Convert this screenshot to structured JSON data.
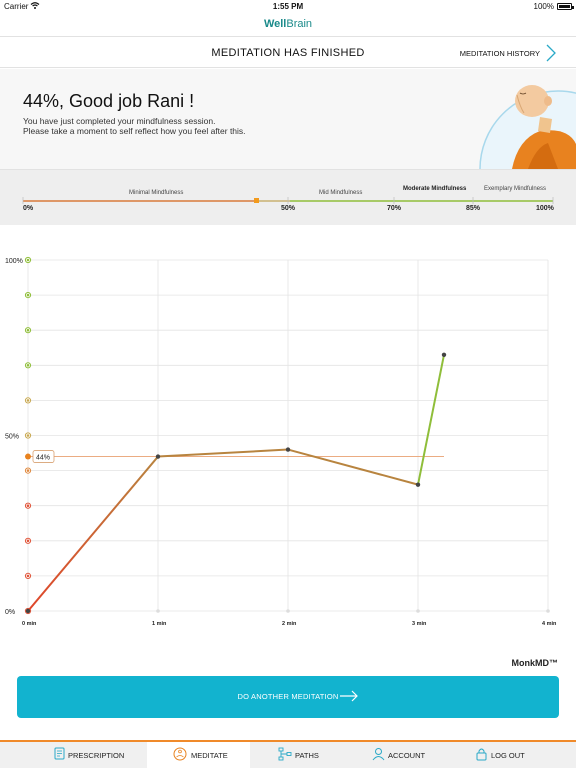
{
  "status_bar": {
    "carrier": "Carrier",
    "time": "1:55 PM",
    "battery": "100%"
  },
  "brand": {
    "part1": "Well",
    "part2": "Brain"
  },
  "header": {
    "title": "MEDITATION HAS FINISHED",
    "history_label": "MEDITATION HISTORY"
  },
  "hero": {
    "score_text": "44%, Good job Rani !",
    "message_line1": "You have just completed your mindfulness session.",
    "message_line2": "Please take a moment to self reflect how you feel after this."
  },
  "scale": {
    "levels": [
      {
        "label": "Minimal Mindfulness"
      },
      {
        "label": "Mid Mindfulness"
      },
      {
        "label": "Moderate Mindfulness"
      },
      {
        "label": "Exemplary Mindfulness"
      }
    ],
    "ticks": [
      "0%",
      "50%",
      "70%",
      "85%",
      "100%"
    ],
    "marker_value": 44,
    "colors": {
      "low": "#d97a3a",
      "mid": "#a9c46a",
      "high": "#7fba3f",
      "marker": "#f29a1d"
    }
  },
  "chart_data": {
    "type": "line",
    "x": [
      0,
      1,
      2,
      3,
      3.2
    ],
    "y": [
      0,
      44,
      46,
      36,
      73
    ],
    "x_ticks": [
      "0 min",
      "1 min",
      "2 min",
      "3 min",
      "4 min"
    ],
    "y_ticks": [
      "0%",
      "50%",
      "100%"
    ],
    "xlim": [
      0,
      4
    ],
    "ylim": [
      0,
      100
    ],
    "average_label": "44%",
    "average_value": 44,
    "grid": true,
    "colors": {
      "line_low": "#e0452a",
      "line_high": "#b8843f",
      "last_segment": "#8fbe3a",
      "avg": "#e8a070"
    }
  },
  "footer_brand": "MonkMD™",
  "cta": {
    "label": "DO ANOTHER MEDITATION"
  },
  "tabs": [
    {
      "label": "PRESCRIPTION",
      "icon": "prescription-icon"
    },
    {
      "label": "MEDITATE",
      "icon": "meditate-icon",
      "active": true
    },
    {
      "label": "PATHS",
      "icon": "paths-icon"
    },
    {
      "label": "ACCOUNT",
      "icon": "account-icon"
    },
    {
      "label": "LOG OUT",
      "icon": "lock-icon"
    }
  ],
  "theme": {
    "accent": "#12b3cf",
    "tab_accent": "#f08a2a",
    "brand": "#1a8a8a"
  }
}
